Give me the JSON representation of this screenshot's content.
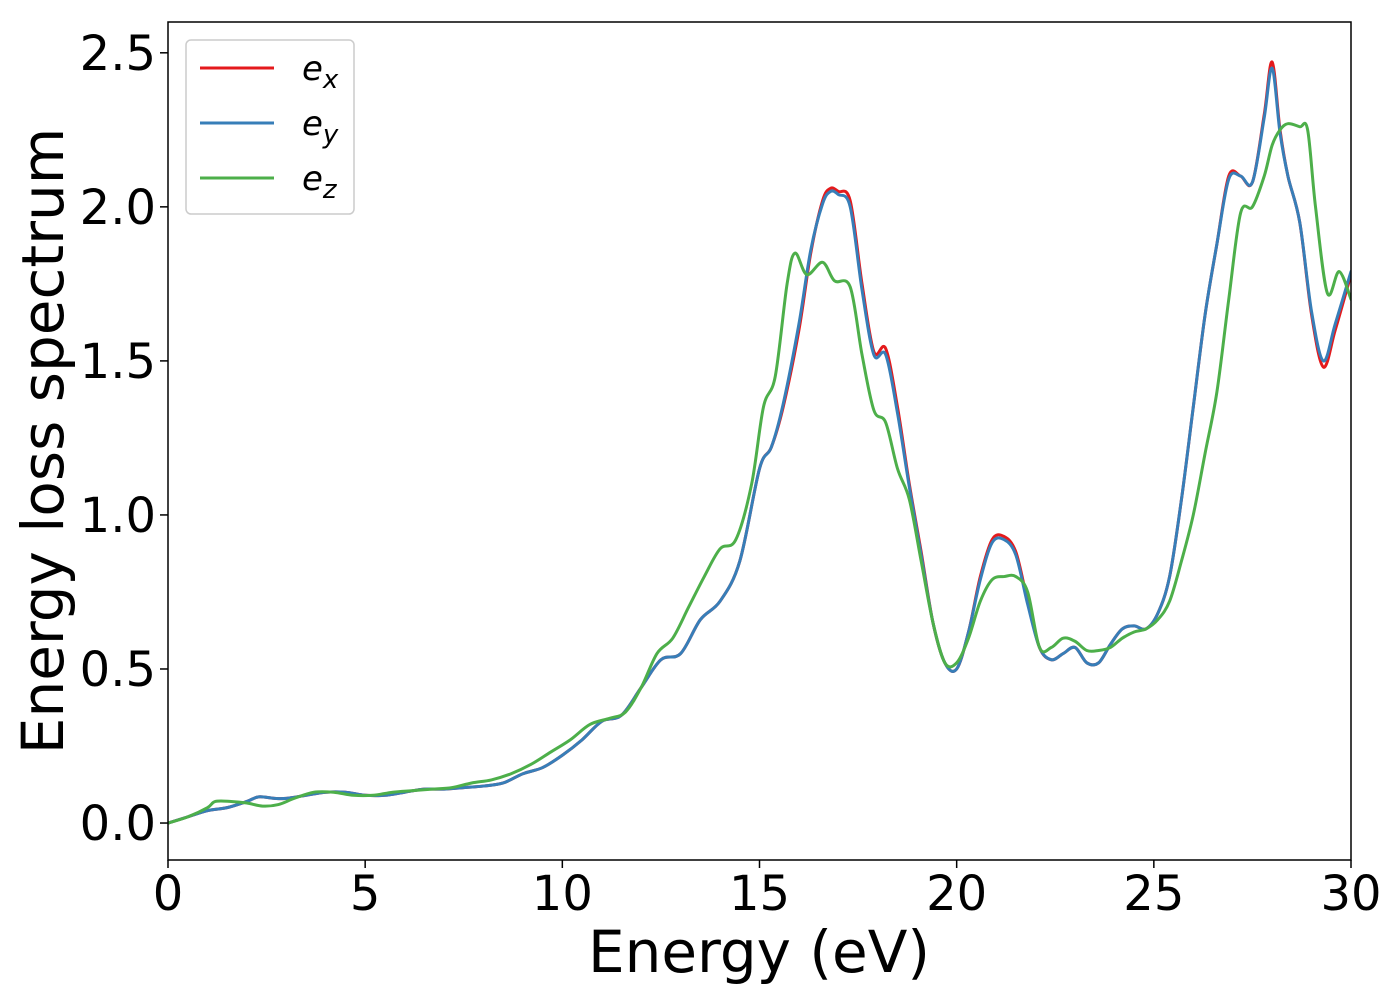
{
  "chart_data": {
    "type": "line",
    "title": "",
    "xlabel": "Energy (eV)",
    "ylabel": "Energy loss spectrum",
    "xlim": [
      0,
      30
    ],
    "ylim": [
      -0.12,
      2.6
    ],
    "xticks": [
      0,
      5,
      10,
      15,
      20,
      25,
      30
    ],
    "xtick_labels": [
      "0",
      "5",
      "10",
      "15",
      "20",
      "25",
      "30"
    ],
    "yticks": [
      0.0,
      0.5,
      1.0,
      1.5,
      2.0,
      2.5
    ],
    "ytick_labels": [
      "0.0",
      "0.5",
      "1.0",
      "1.5",
      "2.0",
      "2.5"
    ],
    "grid": false,
    "legend_position": "top-left",
    "series": [
      {
        "name": "e_x",
        "label_base": "e",
        "label_sub": "x",
        "color": "#e41a1c",
        "x": [
          0,
          0.5,
          1,
          1.5,
          2,
          2.3,
          2.7,
          3,
          3.5,
          4,
          4.5,
          5,
          5.5,
          6,
          6.5,
          7,
          7.5,
          8,
          8.5,
          9,
          9.5,
          10,
          10.5,
          11,
          11.5,
          12,
          12.5,
          13,
          13.5,
          14,
          14.5,
          15,
          15.3,
          15.6,
          16,
          16.3,
          16.6,
          16.8,
          17,
          17.3,
          17.6,
          17.9,
          18.2,
          18.5,
          18.8,
          19.1,
          19.4,
          19.7,
          20,
          20.3,
          20.6,
          20.9,
          21.2,
          21.5,
          21.8,
          22.1,
          22.4,
          22.7,
          23,
          23.3,
          23.6,
          23.9,
          24.2,
          24.5,
          24.8,
          25.1,
          25.4,
          25.7,
          26,
          26.3,
          26.6,
          26.9,
          27.2,
          27.5,
          27.8,
          28,
          28.2,
          28.4,
          28.7,
          29,
          29.3,
          29.6,
          30
        ],
        "y": [
          0.0,
          0.02,
          0.04,
          0.05,
          0.07,
          0.085,
          0.08,
          0.08,
          0.09,
          0.1,
          0.1,
          0.09,
          0.09,
          0.1,
          0.11,
          0.11,
          0.115,
          0.12,
          0.13,
          0.16,
          0.18,
          0.22,
          0.27,
          0.33,
          0.35,
          0.44,
          0.53,
          0.55,
          0.66,
          0.72,
          0.85,
          1.15,
          1.22,
          1.35,
          1.6,
          1.85,
          2.02,
          2.06,
          2.05,
          2.02,
          1.75,
          1.53,
          1.54,
          1.35,
          1.1,
          0.88,
          0.65,
          0.52,
          0.5,
          0.62,
          0.8,
          0.92,
          0.93,
          0.88,
          0.72,
          0.57,
          0.53,
          0.55,
          0.57,
          0.52,
          0.52,
          0.58,
          0.63,
          0.64,
          0.63,
          0.68,
          0.8,
          1.05,
          1.35,
          1.65,
          1.88,
          2.1,
          2.1,
          2.08,
          2.3,
          2.47,
          2.25,
          2.1,
          1.95,
          1.65,
          1.48,
          1.6,
          1.78
        ]
      },
      {
        "name": "e_y",
        "label_base": "e",
        "label_sub": "y",
        "color": "#377eb8",
        "x": [
          0,
          0.5,
          1,
          1.5,
          2,
          2.3,
          2.7,
          3,
          3.5,
          4,
          4.5,
          5,
          5.5,
          6,
          6.5,
          7,
          7.5,
          8,
          8.5,
          9,
          9.5,
          10,
          10.5,
          11,
          11.5,
          12,
          12.5,
          13,
          13.5,
          14,
          14.5,
          15,
          15.3,
          15.6,
          16,
          16.3,
          16.6,
          16.8,
          17,
          17.3,
          17.6,
          17.9,
          18.2,
          18.5,
          18.8,
          19.1,
          19.4,
          19.7,
          20,
          20.3,
          20.6,
          20.9,
          21.2,
          21.5,
          21.8,
          22.1,
          22.4,
          22.7,
          23,
          23.3,
          23.6,
          23.9,
          24.2,
          24.5,
          24.8,
          25.1,
          25.4,
          25.7,
          26,
          26.3,
          26.6,
          26.9,
          27.2,
          27.5,
          27.8,
          28,
          28.2,
          28.4,
          28.7,
          29,
          29.3,
          29.6,
          30
        ],
        "y": [
          0.0,
          0.02,
          0.04,
          0.05,
          0.07,
          0.085,
          0.08,
          0.08,
          0.09,
          0.1,
          0.1,
          0.09,
          0.09,
          0.1,
          0.11,
          0.11,
          0.115,
          0.12,
          0.13,
          0.16,
          0.18,
          0.22,
          0.27,
          0.33,
          0.35,
          0.44,
          0.53,
          0.55,
          0.66,
          0.72,
          0.85,
          1.15,
          1.22,
          1.36,
          1.62,
          1.86,
          2.01,
          2.05,
          2.04,
          2.0,
          1.73,
          1.52,
          1.52,
          1.33,
          1.09,
          0.87,
          0.65,
          0.52,
          0.5,
          0.62,
          0.79,
          0.91,
          0.92,
          0.87,
          0.71,
          0.57,
          0.53,
          0.55,
          0.57,
          0.52,
          0.52,
          0.58,
          0.63,
          0.64,
          0.63,
          0.68,
          0.8,
          1.05,
          1.35,
          1.65,
          1.88,
          2.09,
          2.1,
          2.08,
          2.29,
          2.45,
          2.24,
          2.1,
          1.95,
          1.66,
          1.5,
          1.62,
          1.79
        ]
      },
      {
        "name": "e_z",
        "label_base": "e",
        "label_sub": "z",
        "color": "#4daf4a",
        "x": [
          0,
          0.5,
          1,
          1.2,
          1.6,
          2,
          2.4,
          2.8,
          3.2,
          3.7,
          4.2,
          4.7,
          5.2,
          5.7,
          6.2,
          6.7,
          7.2,
          7.7,
          8.2,
          8.7,
          9.2,
          9.7,
          10.2,
          10.7,
          11.2,
          11.6,
          12,
          12.4,
          12.8,
          13.2,
          13.6,
          14,
          14.4,
          14.8,
          15.1,
          15.4,
          15.7,
          15.9,
          16.2,
          16.6,
          16.9,
          17.3,
          17.6,
          17.9,
          18.2,
          18.5,
          18.8,
          19.1,
          19.4,
          19.7,
          20,
          20.3,
          20.6,
          20.9,
          21.2,
          21.5,
          21.8,
          22.1,
          22.4,
          22.7,
          23,
          23.3,
          23.6,
          23.9,
          24.2,
          24.5,
          24.8,
          25.1,
          25.4,
          25.7,
          26,
          26.3,
          26.6,
          26.9,
          27.2,
          27.5,
          27.8,
          28,
          28.2,
          28.4,
          28.7,
          28.9,
          29.1,
          29.4,
          29.7,
          30
        ],
        "y": [
          0.0,
          0.02,
          0.05,
          0.07,
          0.07,
          0.065,
          0.055,
          0.06,
          0.08,
          0.1,
          0.1,
          0.09,
          0.09,
          0.1,
          0.105,
          0.11,
          0.115,
          0.13,
          0.14,
          0.16,
          0.19,
          0.23,
          0.27,
          0.32,
          0.34,
          0.36,
          0.44,
          0.55,
          0.6,
          0.7,
          0.8,
          0.89,
          0.92,
          1.1,
          1.35,
          1.45,
          1.75,
          1.85,
          1.78,
          1.82,
          1.76,
          1.74,
          1.52,
          1.34,
          1.3,
          1.15,
          1.05,
          0.85,
          0.65,
          0.52,
          0.52,
          0.6,
          0.72,
          0.79,
          0.8,
          0.8,
          0.75,
          0.57,
          0.57,
          0.6,
          0.59,
          0.56,
          0.56,
          0.57,
          0.6,
          0.62,
          0.63,
          0.66,
          0.72,
          0.85,
          1.0,
          1.2,
          1.4,
          1.7,
          1.98,
          2.0,
          2.1,
          2.2,
          2.25,
          2.27,
          2.26,
          2.25,
          2.0,
          1.72,
          1.79,
          1.7
        ]
      }
    ]
  }
}
